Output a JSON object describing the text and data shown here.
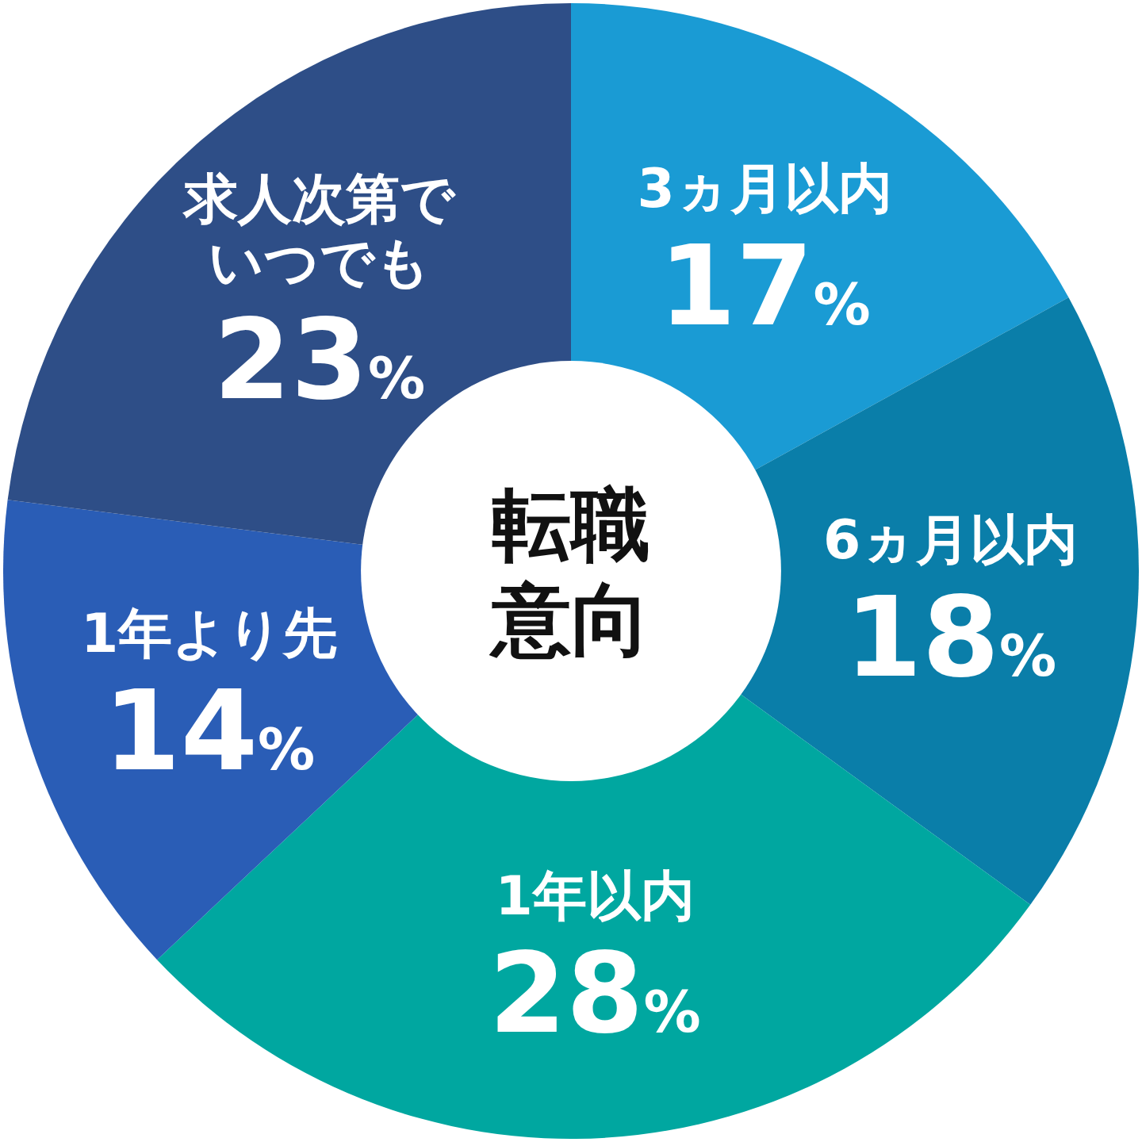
{
  "chart_data": {
    "type": "donut",
    "title": "転職意向",
    "categories": [
      "3ヵ月以内",
      "6ヵ月以内",
      "1年以内",
      "1年より先",
      "求人次第でいつでも"
    ],
    "values": [
      17,
      18,
      28,
      14,
      23
    ],
    "colors": [
      "#1a9bd4",
      "#0a7ea9",
      "#00a7a0",
      "#2a5db6",
      "#2e4e87"
    ],
    "value_labels": [
      "17%",
      "18%",
      "28%",
      "14%",
      "23%"
    ]
  }
}
